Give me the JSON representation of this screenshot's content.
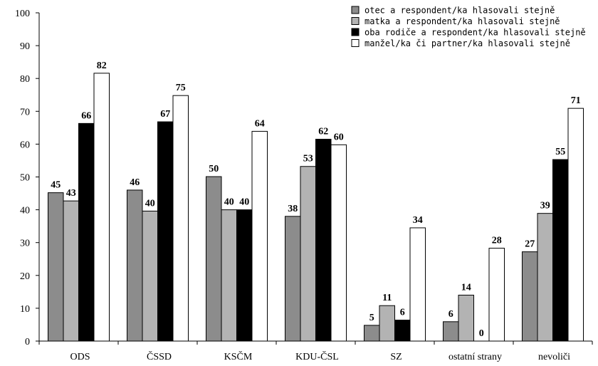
{
  "chart_data": {
    "type": "bar",
    "categories": [
      "ODS",
      "ČSSD",
      "KSČM",
      "KDU-ČSL",
      "SZ",
      "ostatní strany",
      "nevoliči"
    ],
    "series": [
      {
        "name": "otec a respondent/ka hlasovali stejně",
        "values": [
          45,
          46,
          50,
          38,
          5,
          6,
          27
        ],
        "color": "#8c8c8c"
      },
      {
        "name": "matka a respondent/ka hlasovali stejně",
        "values": [
          43,
          40,
          40,
          53,
          11,
          14,
          39
        ],
        "color": "#b3b3b3"
      },
      {
        "name": "oba rodiče a respondent/ka hlasovali stejně",
        "values": [
          66,
          67,
          40,
          62,
          6,
          0,
          55
        ],
        "color": "#000000"
      },
      {
        "name": "manžel/ka či partner/ka hlasovali stejně",
        "values": [
          82,
          75,
          64,
          60,
          34,
          28,
          71
        ],
        "color": "#ffffff"
      }
    ],
    "bar_values": [
      [
        45.2,
        46.0,
        50.1,
        38.0,
        4.8,
        5.9,
        27.2
      ],
      [
        42.7,
        39.6,
        40.0,
        53.2,
        10.8,
        14.0,
        38.9
      ],
      [
        66.3,
        66.8,
        40.0,
        61.5,
        6.4,
        0,
        55.3
      ],
      [
        81.6,
        74.8,
        63.9,
        59.8,
        34.5,
        28.3,
        70.9
      ]
    ],
    "data_labels": [
      [
        "45",
        "46",
        "50",
        "38",
        "5",
        "6",
        "27"
      ],
      [
        "43",
        "40",
        "40",
        "53",
        "11",
        "14",
        "39"
      ],
      [
        "66",
        "67",
        "40",
        "62",
        "6",
        "0",
        "55"
      ],
      [
        "82",
        "75",
        "64",
        "60",
        "34",
        "28",
        "71"
      ]
    ],
    "title": "",
    "xlabel": "",
    "ylabel": "",
    "ylim": [
      0,
      100
    ],
    "yticks": [
      0,
      10,
      20,
      30,
      40,
      50,
      60,
      70,
      80,
      90,
      100
    ],
    "grid": false,
    "legend_position": "top-right"
  }
}
